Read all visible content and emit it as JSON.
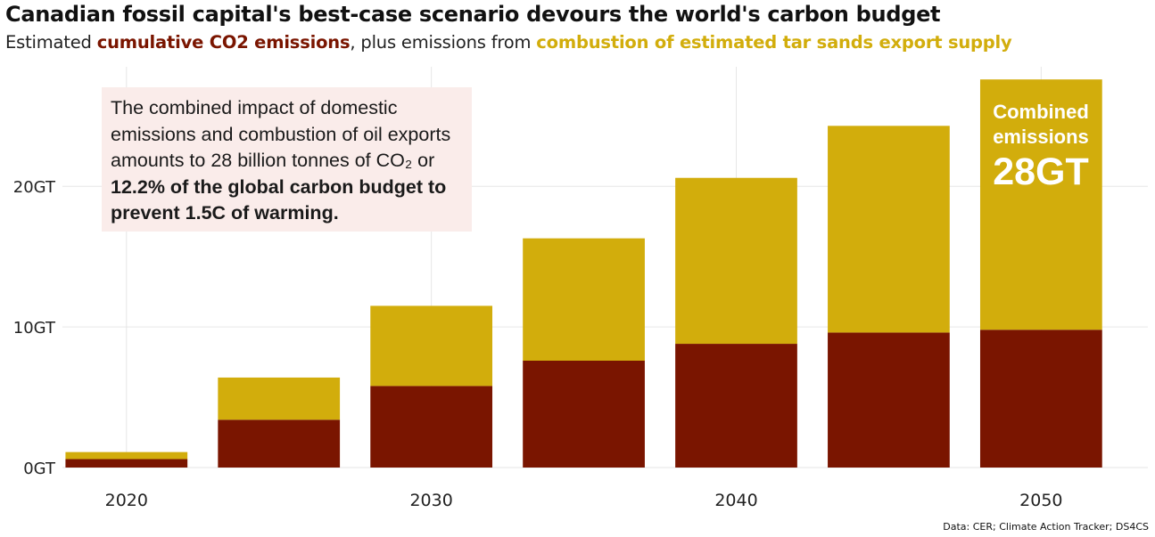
{
  "title": "Canadian fossil capital's best-case scenario devours the world's carbon budget",
  "subtitle": {
    "lead": "Estimated ",
    "highlight1": "cumulative CO2 emissions",
    "middle": ", plus emissions from ",
    "highlight2": "combustion of estimated tar sands export supply"
  },
  "annotation": {
    "text": "The combined impact of domestic emissions and combustion of oil exports amounts to 28 billion tonnes of CO₂ or ",
    "bold": "12.2% of the global carbon budget to prevent 1.5C of warming."
  },
  "callout": {
    "label": "Combined emissions",
    "value": "28GT"
  },
  "source": "Data: CER; Climate Action Tracker; DS4CS",
  "colors": {
    "domestic": "#7a1500",
    "export": "#d2ad0c",
    "grid": "#e6e6e6",
    "annotation_bg": "#faecea"
  },
  "chart_data": {
    "type": "bar",
    "stacked": true,
    "x": [
      2020,
      2025,
      2030,
      2035,
      2040,
      2045,
      2050
    ],
    "series": [
      {
        "name": "cumulative CO2 emissions",
        "values": [
          0.6,
          3.4,
          5.8,
          7.6,
          8.8,
          9.6,
          9.8
        ]
      },
      {
        "name": "combustion of estimated tar sands export supply",
        "values": [
          0.5,
          3.0,
          5.7,
          8.7,
          11.8,
          14.7,
          17.8
        ]
      }
    ],
    "xticks": [
      2020,
      2030,
      2040,
      2050
    ],
    "xtick_labels": [
      "2020",
      "2030",
      "2040",
      "2050"
    ],
    "yticks": [
      0,
      10,
      20
    ],
    "ytick_labels": [
      "0GT",
      "10GT",
      "20GT"
    ],
    "ylim": [
      0,
      28.5
    ],
    "xlim": [
      2017.9,
      2053.5
    ],
    "bar_width_years": 4,
    "grid": true,
    "legend": "none"
  }
}
